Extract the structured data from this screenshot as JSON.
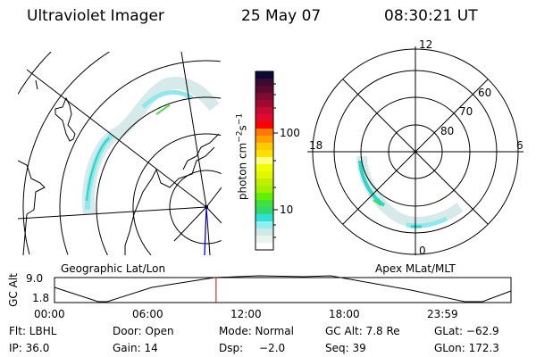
{
  "header": {
    "instrument": "Ultraviolet Imager",
    "date": "25 May 07",
    "time": "08:30:21 UT"
  },
  "colorbar": {
    "label": "photon cm^-2 s^-1",
    "label_main": "photon cm",
    "label_exp1": "−2",
    "label_s": "s",
    "label_exp2": "−1",
    "ticks": [
      "100",
      "10"
    ],
    "colors": [
      "#0a0a38",
      "#3a0a30",
      "#5a0a30",
      "#800a30",
      "#a00a30",
      "#c80a30",
      "#e00a30",
      "#ff0000",
      "#ff7800",
      "#ffa000",
      "#ffc800",
      "#ffe000",
      "#ffff80",
      "#f0ff00",
      "#e0f800",
      "#c0f000",
      "#a0f000",
      "#60f000",
      "#40e040",
      "#30d870",
      "#30e0d8",
      "#90f0f0",
      "#d0e8e8",
      "#eaf4ee",
      "#ffffff"
    ]
  },
  "geo_map": {
    "label": "Geographic Lat/Lon"
  },
  "polar_map": {
    "label": "Apex MLat/MLT",
    "mlt_labels": [
      "12",
      "6",
      "0",
      "18"
    ],
    "lat_labels": [
      "60",
      "70",
      "80"
    ]
  },
  "altitude_plot": {
    "ylabel": "GC Alt",
    "yticks": [
      "9.0",
      "1.8"
    ],
    "xticks": [
      "00:00",
      "06:00",
      "12:00",
      "18:00",
      "23:59"
    ],
    "current_time_fraction": 0.354
  },
  "info": {
    "filter": "Flt: LBHL",
    "ip": "IP: 36.0",
    "door": "Door: Open",
    "gain": "Gain: 14",
    "mode": "Mode: Normal",
    "dsp_label": "Dsp:",
    "dsp_value": "−2.0",
    "gc_alt": "GC Alt: 7.8 Re",
    "seq": "Seq: 39",
    "glat": "GLat: −62.9",
    "glon": "GLon: 172.3"
  },
  "colors": {
    "aurora_light": "#cfe6e6",
    "aurora_mid": "#8ee8ec",
    "aurora_bright": "#2ad6c8",
    "aurora_peak": "#40e040",
    "marker": "#e00000",
    "pole_line": "#0000ff"
  }
}
